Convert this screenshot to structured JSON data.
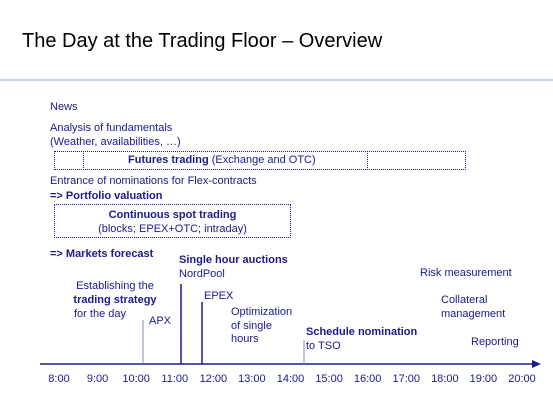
{
  "title": "The Day at the Trading Floor – Overview",
  "news": "News",
  "fundamentals": {
    "line1": "Analysis of fundamentals",
    "line2": "(Weather, availabilities, …)"
  },
  "futures": {
    "bold": "Futures trading",
    "rest": " (Exchange and OTC)"
  },
  "flex_nominations": "Entrance of nominations for Flex-contracts",
  "portfolio_valuation": "=> Portfolio valuation",
  "spot": {
    "title": "Continuous spot trading",
    "detail": "(blocks; EPEX+OTC; intraday)"
  },
  "markets_forecast": "=> Markets forecast",
  "strategy": {
    "line1": "Establishing the",
    "line2": "trading strategy",
    "line3": "for the day"
  },
  "apx": "APX",
  "single_hour": {
    "title": "Single hour auctions",
    "sub": "NordPool"
  },
  "epex": "EPEX",
  "optimization": {
    "line1": "Optimization",
    "line2": "of single",
    "line3": "hours"
  },
  "schedule": {
    "title": "Schedule nomination",
    "sub": "to TSO"
  },
  "risk": "Risk measurement",
  "collateral": {
    "line1": "Collateral",
    "line2": "management"
  },
  "reporting": "Reporting",
  "timeline_ticks": [
    "8:00",
    "9:00",
    "10:00",
    "11:00",
    "12:00",
    "13:00",
    "14:00",
    "15:00",
    "16:00",
    "17:00",
    "18:00",
    "19:00",
    "20:00"
  ],
  "colors": {
    "text": "#1a1a8c",
    "rule": "#c7d3e0",
    "axis": "#1a1a8c"
  }
}
